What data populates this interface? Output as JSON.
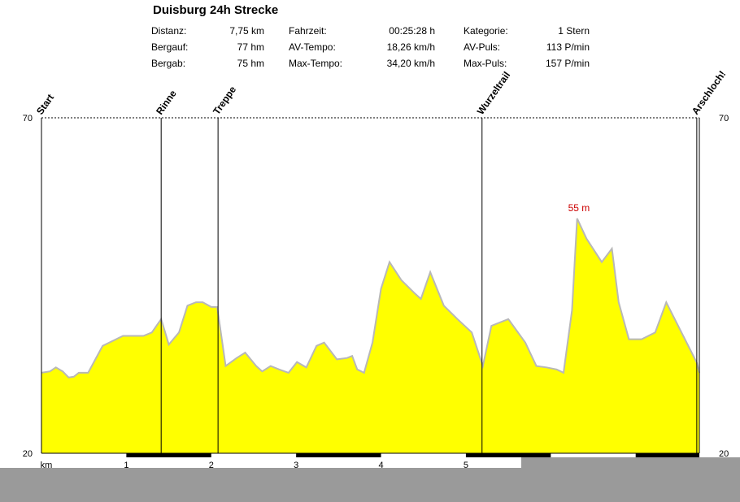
{
  "title": "Duisburg 24h Strecke",
  "stats": [
    {
      "label": "Distanz:",
      "value": "7,75 km"
    },
    {
      "label": "Bergauf:",
      "value": "77 hm"
    },
    {
      "label": "Bergab:",
      "value": "75 hm"
    },
    {
      "label": "Fahrzeit:",
      "value": "00:25:28 h"
    },
    {
      "label": "AV-Tempo:",
      "value": "18,26 km/h"
    },
    {
      "label": "Max-Tempo:",
      "value": "34,20 km/h"
    },
    {
      "label": "Kategorie:",
      "value": "1 Stern"
    },
    {
      "label": "AV-Puls:",
      "value": "113 P/min"
    },
    {
      "label": "Max-Puls:",
      "value": "157 P/min"
    }
  ],
  "chart_data": {
    "type": "area",
    "title": "Duisburg 24h Strecke",
    "xlabel": "km",
    "ylabel": "",
    "xlim": [
      0,
      7.75
    ],
    "ylim": [
      20,
      70
    ],
    "y_ticks": [
      "70",
      "20"
    ],
    "x_ticks": [
      "km",
      "1",
      "2",
      "3",
      "4",
      "5"
    ],
    "fill_color": "#ffff00",
    "line_color": "#b8b8b8",
    "grid": false,
    "max_label": {
      "text": "55 m",
      "x": 6.15,
      "y": 55
    },
    "waypoints": [
      {
        "name": "Start",
        "x": 0
      },
      {
        "name": "Rinne",
        "x": 1.41
      },
      {
        "name": "Treppe",
        "x": 2.08
      },
      {
        "name": "Wurzeltrail",
        "x": 5.19
      },
      {
        "name": "Arschloch!",
        "x": 7.72
      }
    ],
    "series": [
      {
        "x": [
          0,
          0.1,
          0.17,
          0.25,
          0.32,
          0.38,
          0.44,
          0.55,
          0.72,
          0.96,
          1.2,
          1.3,
          1.41,
          1.5,
          1.62,
          1.72,
          1.82,
          1.9,
          2.0,
          2.07,
          2.17,
          2.3,
          2.4,
          2.53,
          2.6,
          2.7,
          2.8,
          2.91,
          3.01,
          3.12,
          3.24,
          3.33,
          3.48,
          3.6,
          3.66,
          3.72,
          3.8,
          3.9,
          4.0,
          4.1,
          4.24,
          4.4,
          4.47,
          4.58,
          4.74,
          4.9,
          5.07,
          5.2,
          5.3,
          5.5,
          5.7,
          5.83,
          5.95,
          6.07,
          6.15,
          6.25,
          6.31,
          6.42,
          6.6,
          6.72,
          6.8,
          6.92,
          7.07,
          7.23,
          7.36,
          7.52,
          7.72,
          7.75
        ],
        "y": [
          32.0,
          32.2,
          32.8,
          32.2,
          31.3,
          31.4,
          32.0,
          32.0,
          36.0,
          37.5,
          37.5,
          38.0,
          40.0,
          36.2,
          38.0,
          42.0,
          42.5,
          42.5,
          41.8,
          41.8,
          33.0,
          34.2,
          35.0,
          33.0,
          32.2,
          33.0,
          32.5,
          32.0,
          33.6,
          32.8,
          36.0,
          36.5,
          34.0,
          34.2,
          34.5,
          32.5,
          32.0,
          36.5,
          44.5,
          48.5,
          45.8,
          43.8,
          43.0,
          47.0,
          42.0,
          40.0,
          38.0,
          33.0,
          39.0,
          40.0,
          36.5,
          33.0,
          32.8,
          32.5,
          32.0,
          41.3,
          55.0,
          52.0,
          48.5,
          50.5,
          42.5,
          37.0,
          37.0,
          38.0,
          42.5,
          38.5,
          33.5,
          32.0
        ]
      }
    ]
  }
}
